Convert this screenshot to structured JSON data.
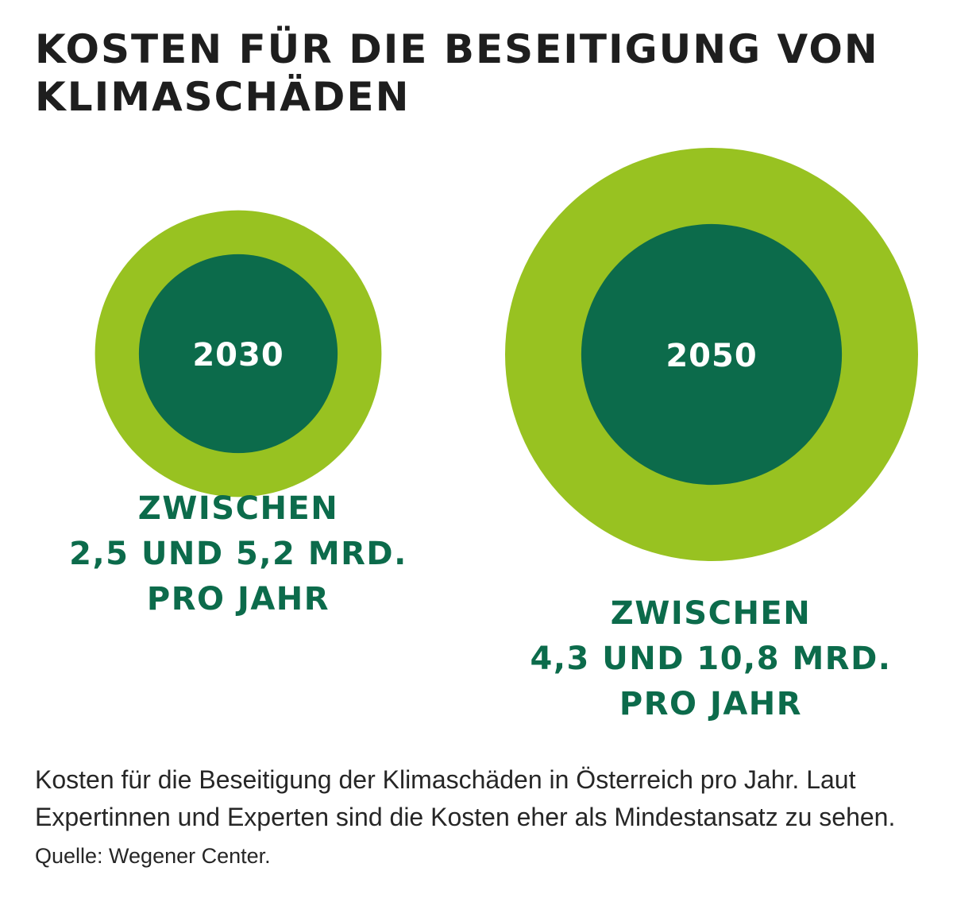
{
  "colors": {
    "outer": "#98c221",
    "inner": "#0c6b4b",
    "label_text": "#ffffff",
    "range_text": "#0c6b4b",
    "title_text": "#1e1e1e"
  },
  "header": {
    "title_line1": "KOSTEN FÜR DIE BESEITIGUNG VON",
    "title_line2": "KLIMASCHÄDEN"
  },
  "chart_data": {
    "type": "bubble",
    "title": "KOSTEN FÜR DIE BESEITIGUNG VON KLIMASCHÄDEN",
    "unit": "MRD. PRO JAHR",
    "series": [
      {
        "year": "2030",
        "min": 2.5,
        "max": 5.2,
        "label_lines": [
          "ZWISCHEN",
          "2,5 UND 5,2 MRD.",
          "PRO JAHR"
        ]
      },
      {
        "year": "2050",
        "min": 4.3,
        "max": 10.8,
        "label_lines": [
          "ZWISCHEN",
          "4,3 UND 10,8 MRD.",
          "PRO JAHR"
        ]
      }
    ]
  },
  "caption": {
    "text": "Kosten für die Beseitigung der Klimaschäden in Österreich pro Jahr. Laut Expertinnen und Experten sind die Kosten eher als Mindestansatz zu sehen.",
    "source": "Quelle: Wegener Center."
  }
}
